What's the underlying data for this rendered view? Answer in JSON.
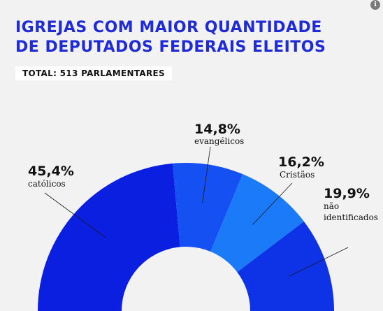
{
  "header": {
    "title_line1": "IGREJAS COM MAIOR QUANTIDADE",
    "title_line2": "DE DEPUTADOS FEDERAIS ELEITOS",
    "subtitle": "TOTAL: 513 PARLAMENTARES",
    "info_icon": "i"
  },
  "chart_data": {
    "type": "pie",
    "variant": "donut",
    "title": "IGREJAS COM MAIOR QUANTIDADE DE DEPUTADOS FEDERAIS ELEITOS",
    "subtitle": "TOTAL: 513 PARLAMENTARES",
    "unit": "%",
    "slices": [
      {
        "label": "católicos",
        "value": 45.4,
        "display": "45,4%",
        "color": "#0a1fe0"
      },
      {
        "label": "evangélicos",
        "value": 14.8,
        "display": "14,8%",
        "color": "#1450f2"
      },
      {
        "label": "Cristãos",
        "value": 16.2,
        "display": "16,2%",
        "color": "#1a7af8"
      },
      {
        "label": "não identificados",
        "label_lines": [
          "não",
          "identificados"
        ],
        "value": 19.9,
        "display": "19,9%",
        "color": "#0e32e6"
      }
    ]
  }
}
